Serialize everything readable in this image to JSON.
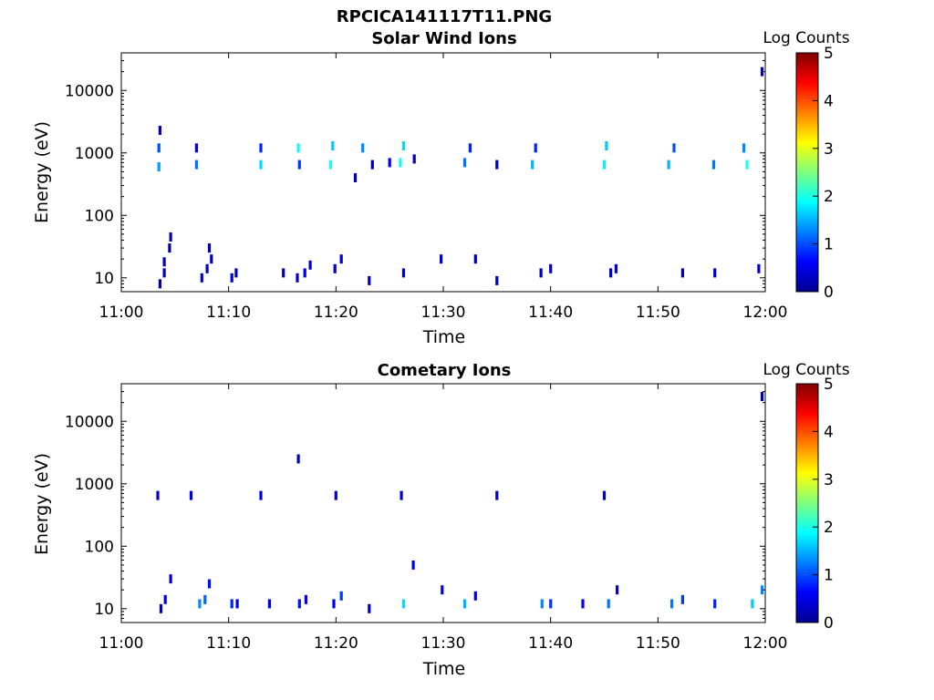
{
  "figure_title": "RPCICA141117T11.PNG",
  "chart_data": [
    {
      "type": "heatmap",
      "title": "Solar Wind Ions",
      "xlabel": "Time",
      "ylabel": "Energy (eV)",
      "x_scale": "time",
      "xlim": [
        "11:00",
        "12:00"
      ],
      "x_ticks": [
        "11:00",
        "11:10",
        "11:20",
        "11:30",
        "11:40",
        "11:50",
        "12:00"
      ],
      "y_scale": "log",
      "ylim": [
        6,
        40000
      ],
      "y_ticks": [
        10,
        100,
        1000,
        10000
      ],
      "y_tick_labels": [
        "10",
        "100",
        "1000",
        "10000"
      ],
      "colorbar": {
        "label": "Log Counts",
        "min": 0,
        "max": 5,
        "ticks": [
          "0",
          "1",
          "2",
          "3",
          "4",
          "5"
        ],
        "colormap": "jet"
      },
      "cells": [
        {
          "t": "11:03.6",
          "e": 8,
          "v": 0.2
        },
        {
          "t": "11:04.0",
          "e": 12,
          "v": 0.3
        },
        {
          "t": "11:04.0",
          "e": 18,
          "v": 0.3
        },
        {
          "t": "11:04.5",
          "e": 30,
          "v": 0.2
        },
        {
          "t": "11:04.6",
          "e": 45,
          "v": 0.3
        },
        {
          "t": "11:03.5",
          "e": 1200,
          "v": 1.0
        },
        {
          "t": "11:03.5",
          "e": 600,
          "v": 1.4
        },
        {
          "t": "11:03.6",
          "e": 2300,
          "v": 0.3
        },
        {
          "t": "11:07.0",
          "e": 650,
          "v": 1.2
        },
        {
          "t": "11:07.0",
          "e": 1200,
          "v": 0.4
        },
        {
          "t": "11:07.5",
          "e": 10,
          "v": 0.3
        },
        {
          "t": "11:08.0",
          "e": 14,
          "v": 0.3
        },
        {
          "t": "11:08.2",
          "e": 30,
          "v": 0.3
        },
        {
          "t": "11:08.4",
          "e": 20,
          "v": 0.3
        },
        {
          "t": "11:10.3",
          "e": 10,
          "v": 0.4
        },
        {
          "t": "11:10.7",
          "e": 12,
          "v": 0.4
        },
        {
          "t": "11:13.0",
          "e": 650,
          "v": 1.7
        },
        {
          "t": "11:13.0",
          "e": 1200,
          "v": 0.8
        },
        {
          "t": "11:15.1",
          "e": 12,
          "v": 0.3
        },
        {
          "t": "11:16.5",
          "e": 1200,
          "v": 1.9
        },
        {
          "t": "11:16.6",
          "e": 650,
          "v": 0.9
        },
        {
          "t": "11:16.4",
          "e": 10,
          "v": 0.3
        },
        {
          "t": "11:17.1",
          "e": 12,
          "v": 0.6
        },
        {
          "t": "11:17.6",
          "e": 16,
          "v": 0.4
        },
        {
          "t": "11:19.5",
          "e": 650,
          "v": 2.0
        },
        {
          "t": "11:19.7",
          "e": 1300,
          "v": 1.6
        },
        {
          "t": "11:19.9",
          "e": 14,
          "v": 0.4
        },
        {
          "t": "11:20.5",
          "e": 20,
          "v": 0.4
        },
        {
          "t": "11:21.8",
          "e": 400,
          "v": 0.3
        },
        {
          "t": "11:22.5",
          "e": 1200,
          "v": 1.3
        },
        {
          "t": "11:23.1",
          "e": 9,
          "v": 0.3
        },
        {
          "t": "11:23.4",
          "e": 650,
          "v": 0.3
        },
        {
          "t": "11:25.0",
          "e": 700,
          "v": 0.6
        },
        {
          "t": "11:26.0",
          "e": 700,
          "v": 1.9
        },
        {
          "t": "11:26.3",
          "e": 1300,
          "v": 1.7
        },
        {
          "t": "11:26.3",
          "e": 12,
          "v": 0.4
        },
        {
          "t": "11:27.3",
          "e": 800,
          "v": 0.3
        },
        {
          "t": "11:29.8",
          "e": 20,
          "v": 0.4
        },
        {
          "t": "11:32.0",
          "e": 700,
          "v": 1.2
        },
        {
          "t": "11:32.5",
          "e": 1200,
          "v": 0.8
        },
        {
          "t": "11:33.0",
          "e": 20,
          "v": 0.3
        },
        {
          "t": "11:35.0",
          "e": 9,
          "v": 0.3
        },
        {
          "t": "11:35.0",
          "e": 650,
          "v": 0.3
        },
        {
          "t": "11:38.3",
          "e": 650,
          "v": 1.5
        },
        {
          "t": "11:38.6",
          "e": 1200,
          "v": 0.8
        },
        {
          "t": "11:39.1",
          "e": 12,
          "v": 0.4
        },
        {
          "t": "11:40.0",
          "e": 14,
          "v": 0.3
        },
        {
          "t": "11:45.0",
          "e": 650,
          "v": 1.8
        },
        {
          "t": "11:45.2",
          "e": 1300,
          "v": 1.6
        },
        {
          "t": "11:45.6",
          "e": 12,
          "v": 0.4
        },
        {
          "t": "11:46.1",
          "e": 14,
          "v": 0.4
        },
        {
          "t": "11:51.0",
          "e": 650,
          "v": 1.5
        },
        {
          "t": "11:51.5",
          "e": 1200,
          "v": 1.0
        },
        {
          "t": "11:52.3",
          "e": 12,
          "v": 0.3
        },
        {
          "t": "11:55.3",
          "e": 12,
          "v": 0.4
        },
        {
          "t": "11:55.2",
          "e": 650,
          "v": 1.2
        },
        {
          "t": "11:58.3",
          "e": 650,
          "v": 2.0
        },
        {
          "t": "11:58.0",
          "e": 1200,
          "v": 1.3
        },
        {
          "t": "11:59.4",
          "e": 14,
          "v": 0.4
        },
        {
          "t": "11:59.7",
          "e": 20000,
          "v": 0.2
        }
      ]
    },
    {
      "type": "heatmap",
      "title": "Cometary Ions",
      "xlabel": "Time",
      "ylabel": "Energy (eV)",
      "x_scale": "time",
      "xlim": [
        "11:00",
        "12:00"
      ],
      "x_ticks": [
        "11:00",
        "11:10",
        "11:20",
        "11:30",
        "11:40",
        "11:50",
        "12:00"
      ],
      "y_scale": "log",
      "ylim": [
        6,
        40000
      ],
      "y_ticks": [
        10,
        100,
        1000,
        10000
      ],
      "y_tick_labels": [
        "10",
        "100",
        "1000",
        "10000"
      ],
      "colorbar": {
        "label": "Log Counts",
        "min": 0,
        "max": 5,
        "ticks": [
          "0",
          "1",
          "2",
          "3",
          "4",
          "5"
        ],
        "colormap": "jet"
      },
      "cells": [
        {
          "t": "11:03.7",
          "e": 10,
          "v": 0.4
        },
        {
          "t": "11:04.1",
          "e": 14,
          "v": 0.5
        },
        {
          "t": "11:04.6",
          "e": 30,
          "v": 0.4
        },
        {
          "t": "11:03.4",
          "e": 650,
          "v": 0.4
        },
        {
          "t": "11:06.5",
          "e": 650,
          "v": 0.5
        },
        {
          "t": "11:07.3",
          "e": 12,
          "v": 1.3
        },
        {
          "t": "11:07.8",
          "e": 14,
          "v": 1.1
        },
        {
          "t": "11:08.2",
          "e": 25,
          "v": 0.7
        },
        {
          "t": "11:10.3",
          "e": 12,
          "v": 0.8
        },
        {
          "t": "11:10.8",
          "e": 12,
          "v": 0.6
        },
        {
          "t": "11:13.0",
          "e": 650,
          "v": 0.5
        },
        {
          "t": "11:13.8",
          "e": 12,
          "v": 0.5
        },
        {
          "t": "11:16.6",
          "e": 12,
          "v": 0.7
        },
        {
          "t": "11:17.2",
          "e": 14,
          "v": 0.6
        },
        {
          "t": "11:16.5",
          "e": 2500,
          "v": 0.3
        },
        {
          "t": "11:19.8",
          "e": 12,
          "v": 0.6
        },
        {
          "t": "11:20.5",
          "e": 16,
          "v": 0.9
        },
        {
          "t": "11:20.0",
          "e": 650,
          "v": 0.4
        },
        {
          "t": "11:23.1",
          "e": 10,
          "v": 0.4
        },
        {
          "t": "11:26.3",
          "e": 12,
          "v": 1.7
        },
        {
          "t": "11:26.1",
          "e": 650,
          "v": 0.4
        },
        {
          "t": "11:27.2",
          "e": 50,
          "v": 0.5
        },
        {
          "t": "11:29.9",
          "e": 20,
          "v": 0.5
        },
        {
          "t": "11:32.0",
          "e": 12,
          "v": 1.5
        },
        {
          "t": "11:33.0",
          "e": 16,
          "v": 0.5
        },
        {
          "t": "11:35.0",
          "e": 650,
          "v": 0.3
        },
        {
          "t": "11:39.2",
          "e": 12,
          "v": 1.3
        },
        {
          "t": "11:40.0",
          "e": 12,
          "v": 0.9
        },
        {
          "t": "11:43.0",
          "e": 12,
          "v": 0.6
        },
        {
          "t": "11:45.4",
          "e": 12,
          "v": 1.2
        },
        {
          "t": "11:46.2",
          "e": 20,
          "v": 0.4
        },
        {
          "t": "11:45.0",
          "e": 650,
          "v": 0.4
        },
        {
          "t": "11:51.3",
          "e": 12,
          "v": 1.2
        },
        {
          "t": "11:52.3",
          "e": 14,
          "v": 0.9
        },
        {
          "t": "11:55.3",
          "e": 12,
          "v": 0.8
        },
        {
          "t": "11:58.8",
          "e": 12,
          "v": 1.6
        },
        {
          "t": "11:59.7",
          "e": 20,
          "v": 1.3
        },
        {
          "t": "11:59.7",
          "e": 25000,
          "v": 0.2
        }
      ]
    }
  ]
}
